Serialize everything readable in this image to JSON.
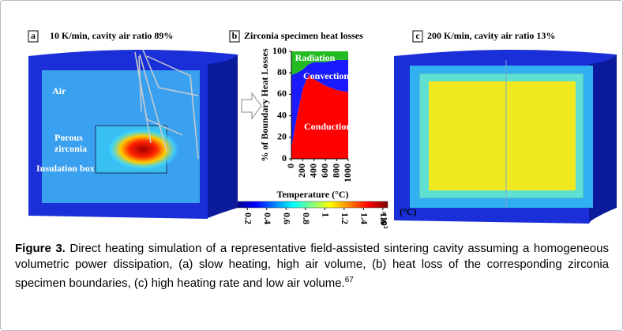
{
  "panels": [
    {
      "letter": "a",
      "title": "10 K/min, cavity air ratio 89%",
      "annotations": [
        "Air",
        "Porous",
        "zirconia",
        "Insulation box"
      ]
    },
    {
      "letter": "b",
      "title": "Zirconia specimen heat losses"
    },
    {
      "letter": "c",
      "title": "200 K/min, cavity air ratio 13%"
    }
  ],
  "chart_data": {
    "type": "stacked-area",
    "x": [
      0,
      100,
      200,
      300,
      400,
      600,
      800,
      1000
    ],
    "series": [
      {
        "name": "Radiation",
        "color": "#ff0000",
        "values": [
          10,
          40,
          65,
          78,
          74,
          68,
          64,
          62
        ]
      },
      {
        "name": "Convection",
        "color": "#1a1aff",
        "values": [
          68,
          40,
          18,
          10,
          16,
          22,
          28,
          30
        ]
      },
      {
        "name": "Conduction",
        "color": "#22bb22",
        "values": [
          22,
          20,
          17,
          12,
          10,
          10,
          8,
          8
        ]
      }
    ],
    "xlim": [
      0,
      1000
    ],
    "xticks": [
      0,
      200,
      400,
      600,
      800,
      1000
    ],
    "ylim": [
      0,
      100
    ],
    "yticks": [
      0,
      20,
      40,
      60,
      80,
      100
    ],
    "xlabel": "Temperature (°C)",
    "ylabel": "% of Boundary Heat Losses"
  },
  "colorbar": {
    "lim": [
      0.1,
      1.65
    ],
    "ticks": [
      0.2,
      0.4,
      0.6,
      0.8,
      1,
      1.2,
      1.4,
      1.6
    ],
    "multiplier": "×10³",
    "unit": "(°C)"
  },
  "caption": {
    "label": "Figure 3.",
    "text": " Direct heating simulation of a representative field-assisted sintering cavity assuming a homogeneous volumetric power dissipation, (a) slow heating, high air volume, (b) heat loss of the corresponding zirconia specimen boundaries, (c) high heating rate and low air volume.",
    "ref": "67"
  }
}
